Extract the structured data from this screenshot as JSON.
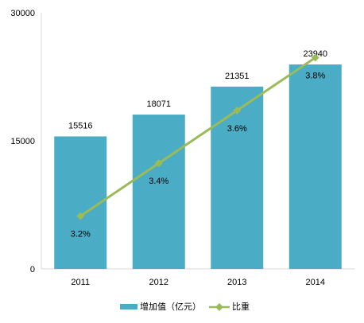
{
  "chart_data": {
    "type": "bar",
    "title": "",
    "xlabel": "",
    "ylabel": "",
    "categories": [
      "2011",
      "2012",
      "2013",
      "2014"
    ],
    "ylim": [
      0,
      30000
    ],
    "yticks": [
      "0",
      "15000",
      "30000"
    ],
    "series": [
      {
        "name": "增加值（亿元）",
        "kind": "bar",
        "values": [
          15516,
          18071,
          21351,
          23940
        ],
        "labels": [
          "15516",
          "18071",
          "21351",
          "23940"
        ],
        "color": "#4bacc6"
      },
      {
        "name": "比重",
        "kind": "line",
        "values": [
          3.2,
          3.4,
          3.6,
          3.8
        ],
        "labels": [
          "3.2%",
          "3.4%",
          "3.6%",
          "3.8%"
        ],
        "color": "#9bbb59"
      }
    ],
    "grid": false,
    "legend": "bottom"
  }
}
